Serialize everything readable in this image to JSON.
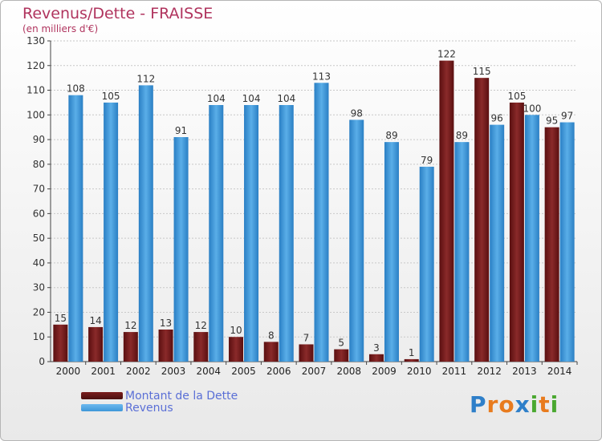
{
  "title": "Revenus/Dette - FRAISSE",
  "subtitle": "(en milliers d'€)",
  "legend": {
    "dette_label": "Montant de la Dette",
    "revenus_label": "Revenus"
  },
  "logo": {
    "letters": [
      "P",
      "r",
      "o",
      "x",
      "i",
      "t",
      "i"
    ],
    "colors": [
      "#2e7fc9",
      "#e87b1e",
      "#e87b1e",
      "#2e7fc9",
      "#4aa830",
      "#e87b1e",
      "#4aa830"
    ]
  },
  "colors": {
    "dette": "#7a1d1d",
    "revenus": "#3d97d8",
    "title": "#b0345e"
  },
  "chart_data": {
    "type": "bar",
    "categories": [
      "2000",
      "2001",
      "2002",
      "2003",
      "2004",
      "2005",
      "2006",
      "2007",
      "2008",
      "2009",
      "2010",
      "2011",
      "2012",
      "2013",
      "2014"
    ],
    "series": [
      {
        "name": "Montant de la Dette",
        "values": [
          15,
          14,
          12,
          13,
          12,
          10,
          8,
          7,
          5,
          3,
          1,
          122,
          115,
          105,
          95
        ]
      },
      {
        "name": "Revenus",
        "values": [
          108,
          105,
          112,
          91,
          104,
          104,
          104,
          113,
          98,
          89,
          79,
          89,
          96,
          100,
          97
        ]
      }
    ],
    "ylim": [
      0,
      130
    ],
    "yticks": [
      0,
      10,
      20,
      30,
      40,
      50,
      60,
      70,
      80,
      90,
      100,
      110,
      120,
      130
    ],
    "grid": true,
    "legend_position": "bottom-left"
  }
}
